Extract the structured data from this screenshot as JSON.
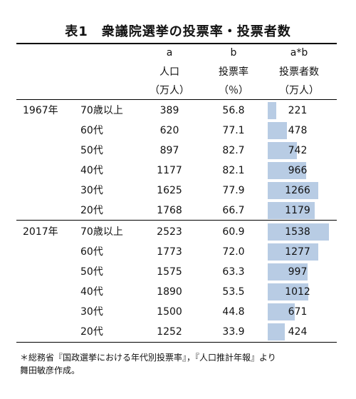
{
  "title": "表1　衆議院選挙の投票率・投票者数",
  "headers": {
    "population": {
      "mark": "a",
      "label": "人口",
      "unit": "（万人）"
    },
    "turnout": {
      "mark": "b",
      "label": "投票率",
      "unit": "（％）"
    },
    "voters": {
      "mark": "a*b",
      "label": "投票者数",
      "unit": "（万人）"
    }
  },
  "groups": [
    {
      "year": "1967年",
      "rows": [
        {
          "age": "70歳以上",
          "population": "389",
          "turnout": "56.8",
          "voters": "221",
          "voters_value": 221
        },
        {
          "age": "60代",
          "population": "620",
          "turnout": "77.1",
          "voters": "478",
          "voters_value": 478
        },
        {
          "age": "50代",
          "population": "897",
          "turnout": "82.7",
          "voters": "742",
          "voters_value": 742
        },
        {
          "age": "40代",
          "population": "1177",
          "turnout": "82.1",
          "voters": "966",
          "voters_value": 966
        },
        {
          "age": "30代",
          "population": "1625",
          "turnout": "77.9",
          "voters": "1266",
          "voters_value": 1266
        },
        {
          "age": "20代",
          "population": "1768",
          "turnout": "66.7",
          "voters": "1179",
          "voters_value": 1179
        }
      ]
    },
    {
      "year": "2017年",
      "rows": [
        {
          "age": "70歳以上",
          "population": "2523",
          "turnout": "60.9",
          "voters": "1538",
          "voters_value": 1538
        },
        {
          "age": "60代",
          "population": "1773",
          "turnout": "72.0",
          "voters": "1277",
          "voters_value": 1277
        },
        {
          "age": "50代",
          "population": "1575",
          "turnout": "63.3",
          "voters": "997",
          "voters_value": 997
        },
        {
          "age": "40代",
          "population": "1890",
          "turnout": "53.5",
          "voters": "1012",
          "voters_value": 1012
        },
        {
          "age": "30代",
          "population": "1500",
          "turnout": "44.8",
          "voters": "671",
          "voters_value": 671
        },
        {
          "age": "20代",
          "population": "1252",
          "turnout": "33.9",
          "voters": "424",
          "voters_value": 424
        }
      ]
    }
  ],
  "bar_color": "#b8cce4",
  "bar_max_value": 1538,
  "note_lines": [
    "＊総務省『国政選挙における年代別投票率』，『人口推計年報』より",
    "舞田敏彦作成。"
  ]
}
